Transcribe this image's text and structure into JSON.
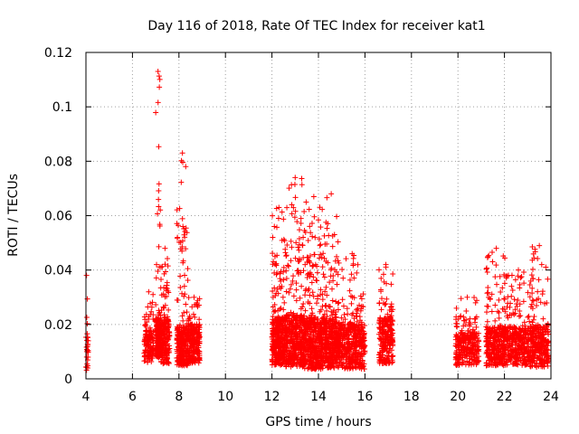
{
  "chart_data": {
    "type": "scatter",
    "title": "Day 116 of 2018, Rate Of TEC Index for receiver kat1",
    "xlabel": "GPS time / hours",
    "ylabel": "ROTI / TECUs",
    "xlim": [
      4,
      24
    ],
    "ylim": [
      0,
      0.12
    ],
    "xticks": [
      "4",
      "6",
      "8",
      "10",
      "12",
      "14",
      "16",
      "18",
      "20",
      "22",
      "24"
    ],
    "yticks": [
      "0",
      "0.02",
      "0.04",
      "0.06",
      "0.08",
      "0.1",
      "0.12"
    ],
    "grid": true,
    "marker": "+",
    "series_color": "#ff0000",
    "segments": [
      {
        "start": 3.95,
        "end": 4.1,
        "base": 0.01,
        "spread": 0.012,
        "peak": 0.038,
        "count": 40
      },
      {
        "start": 6.5,
        "end": 6.9,
        "base": 0.012,
        "spread": 0.01,
        "peak": 0.032,
        "count": 120
      },
      {
        "start": 7.0,
        "end": 7.2,
        "base": 0.015,
        "spread": 0.012,
        "peak": 0.113,
        "count": 180
      },
      {
        "start": 7.2,
        "end": 7.6,
        "base": 0.014,
        "spread": 0.014,
        "peak": 0.048,
        "count": 200
      },
      {
        "start": 7.9,
        "end": 8.4,
        "base": 0.012,
        "spread": 0.012,
        "peak": 0.083,
        "count": 260
      },
      {
        "start": 8.4,
        "end": 8.9,
        "base": 0.013,
        "spread": 0.012,
        "peak": 0.03,
        "count": 220
      },
      {
        "start": 12.0,
        "end": 12.6,
        "base": 0.014,
        "spread": 0.015,
        "peak": 0.063,
        "count": 360
      },
      {
        "start": 12.6,
        "end": 13.4,
        "base": 0.014,
        "spread": 0.016,
        "peak": 0.074,
        "count": 420
      },
      {
        "start": 13.4,
        "end": 14.2,
        "base": 0.013,
        "spread": 0.016,
        "peak": 0.067,
        "count": 420
      },
      {
        "start": 14.2,
        "end": 14.9,
        "base": 0.013,
        "spread": 0.015,
        "peak": 0.068,
        "count": 380
      },
      {
        "start": 14.9,
        "end": 16.0,
        "base": 0.012,
        "spread": 0.014,
        "peak": 0.046,
        "count": 420
      },
      {
        "start": 16.6,
        "end": 17.2,
        "base": 0.014,
        "spread": 0.014,
        "peak": 0.042,
        "count": 240
      },
      {
        "start": 19.9,
        "end": 20.9,
        "base": 0.011,
        "spread": 0.01,
        "peak": 0.03,
        "count": 280
      },
      {
        "start": 21.2,
        "end": 22.1,
        "base": 0.012,
        "spread": 0.012,
        "peak": 0.048,
        "count": 320
      },
      {
        "start": 22.1,
        "end": 23.1,
        "base": 0.012,
        "spread": 0.012,
        "peak": 0.04,
        "count": 320
      },
      {
        "start": 23.1,
        "end": 23.9,
        "base": 0.012,
        "spread": 0.013,
        "peak": 0.049,
        "count": 300
      }
    ]
  }
}
